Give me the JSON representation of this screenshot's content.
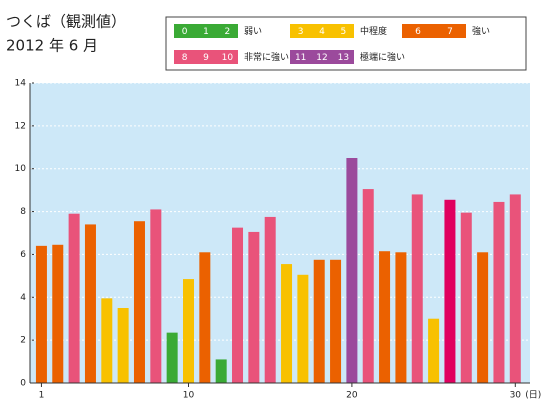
{
  "chart_data": {
    "type": "bar",
    "title": "つくば（観測値）",
    "subtitle": "2012 年 6 月",
    "x_label": "(日)",
    "legend": [
      {
        "levels": [
          "0",
          "1",
          "2"
        ],
        "label": "弱い",
        "color": "#3aaa35"
      },
      {
        "levels": [
          "3",
          "4",
          "5"
        ],
        "label": "中程度",
        "color": "#f8c100"
      },
      {
        "levels": [
          "6",
          "7"
        ],
        "label": "強い",
        "color": "#eb6100"
      },
      {
        "levels": [
          "8",
          "9",
          "10"
        ],
        "label": "非常に強い",
        "color": "#e9537a"
      },
      {
        "levels": [
          "11",
          "12",
          "13"
        ],
        "label": "極端に強い",
        "color": "#9b4a9c"
      }
    ],
    "x": [
      1,
      2,
      3,
      4,
      5,
      6,
      7,
      8,
      9,
      10,
      11,
      12,
      13,
      14,
      15,
      16,
      17,
      18,
      19,
      20,
      21,
      22,
      23,
      24,
      25,
      26,
      27,
      28,
      29,
      30
    ],
    "values": [
      6.4,
      6.45,
      7.9,
      7.4,
      3.95,
      3.5,
      7.55,
      8.1,
      2.35,
      4.85,
      6.1,
      1.1,
      7.25,
      7.05,
      7.75,
      5.55,
      5.05,
      5.75,
      5.75,
      10.5,
      9.05,
      6.15,
      6.1,
      8.8,
      3.0,
      8.55,
      7.95,
      6.1,
      8.45,
      8.8
    ],
    "colors": [
      "#eb6100",
      "#eb6100",
      "#e9537a",
      "#eb6100",
      "#f8c100",
      "#f8c100",
      "#eb6100",
      "#e9537a",
      "#3aaa35",
      "#f8c100",
      "#eb6100",
      "#3aaa35",
      "#e9537a",
      "#e9537a",
      "#e9537a",
      "#f8c100",
      "#f8c100",
      "#eb6100",
      "#eb6100",
      "#9b4a9c",
      "#e9537a",
      "#eb6100",
      "#eb6100",
      "#e9537a",
      "#f8c100",
      "#e0005f",
      "#e9537a",
      "#eb6100",
      "#e9537a",
      "#e9537a"
    ],
    "xlim": [
      0.3,
      30.9
    ],
    "xticks": [
      1,
      10,
      20,
      30
    ],
    "ylim": [
      0,
      14
    ],
    "yticks": [
      0,
      2,
      4,
      6,
      8,
      10,
      12,
      14
    ],
    "grid": true,
    "background": "#cde8f8"
  }
}
